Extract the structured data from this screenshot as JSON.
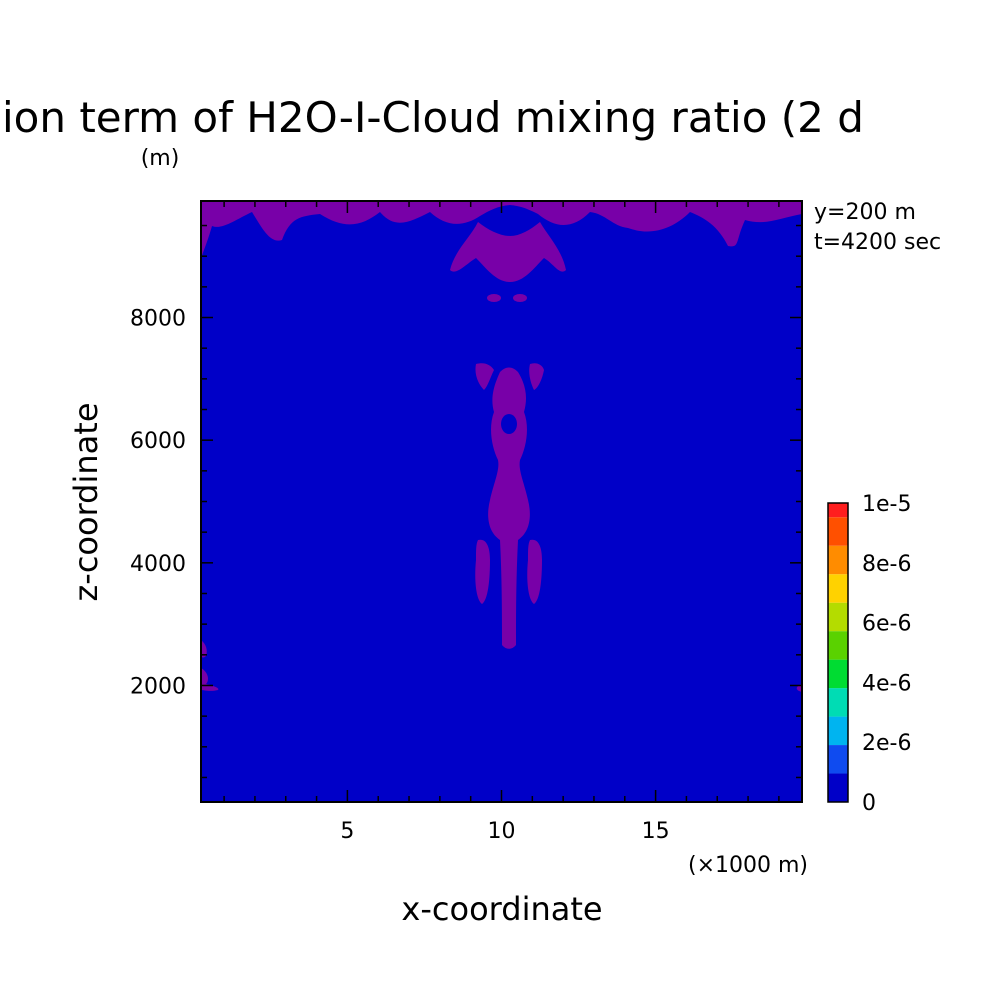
{
  "chart_data": {
    "type": "heatmap",
    "title": "ion term of H2O-I-Cloud mixing ratio (2 d",
    "ylabel_unit": "(m)",
    "xlabel": "x-coordinate",
    "ylabel": "z-coordinate",
    "xlabel_unit": "(×1000 m)",
    "annotations": [
      "y=200 m",
      "t=4200 sec"
    ],
    "xlim": [
      0.25,
      19.75
    ],
    "ylim": [
      100,
      9900
    ],
    "x_ticks": [
      5,
      10,
      15
    ],
    "y_ticks": [
      2000,
      4000,
      6000,
      8000
    ],
    "colorbar": {
      "ticks": [
        "0",
        "2e-6",
        "4e-6",
        "6e-6",
        "8e-6",
        "1e-5"
      ],
      "levels": [
        0,
        1e-06,
        2e-06,
        3e-06,
        4e-06,
        5e-06,
        6e-06,
        7e-06,
        8e-06,
        9e-06,
        1e-05
      ],
      "colors": [
        "#0000c8",
        "#0f4bf0",
        "#00b4f0",
        "#00dcb4",
        "#00dc32",
        "#5ad200",
        "#b4dc00",
        "#ffd200",
        "#ff8c00",
        "#ff5000",
        "#ff1e1e"
      ]
    },
    "field": {
      "background_color": "#0000c8",
      "feature_color": "#7800a8",
      "description_level": "small positive values"
    }
  }
}
